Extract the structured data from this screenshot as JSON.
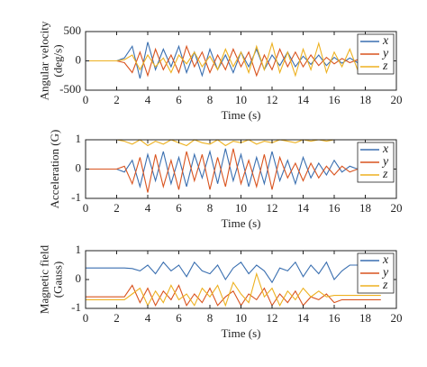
{
  "chart_data": [
    {
      "type": "line",
      "ylabel": [
        "Angular velocity",
        "(deg/s)"
      ],
      "xlabel": "Time (s)",
      "x": [
        0,
        0.5,
        1,
        1.5,
        2,
        2.5,
        3,
        3.5,
        4,
        4.5,
        5,
        5.5,
        6,
        6.5,
        7,
        7.5,
        8,
        8.5,
        9,
        9.5,
        10,
        10.5,
        11,
        11.5,
        12,
        12.5,
        13,
        13.5,
        14,
        14.5,
        15,
        15.5,
        16,
        16.5,
        17,
        17.5,
        18,
        18.5,
        19
      ],
      "xlim": [
        0,
        20
      ],
      "xticks": [
        0,
        2,
        4,
        6,
        8,
        10,
        12,
        14,
        16,
        18,
        20
      ],
      "ylim": [
        -500,
        500
      ],
      "yticks": [
        -500,
        0,
        500
      ],
      "legend": "upper right",
      "series": [
        {
          "name": "x",
          "color": "#3a6fb0",
          "values": [
            0,
            0,
            0,
            0,
            0,
            50,
            250,
            -300,
            320,
            -150,
            200,
            -100,
            250,
            -200,
            150,
            -250,
            200,
            -150,
            100,
            -200,
            150,
            -100,
            200,
            -150,
            100,
            -80,
            150,
            -100,
            80,
            -60,
            100,
            -80,
            60,
            -40,
            50,
            -30,
            20,
            10,
            0
          ]
        },
        {
          "name": "y",
          "color": "#d9531e",
          "values": [
            0,
            0,
            0,
            0,
            0,
            -30,
            -200,
            150,
            -250,
            200,
            -150,
            100,
            -200,
            250,
            -100,
            150,
            -200,
            100,
            -150,
            200,
            -100,
            150,
            -250,
            100,
            -150,
            200,
            -100,
            150,
            -100,
            100,
            -80,
            60,
            -50,
            40,
            -30,
            20,
            0,
            0,
            0
          ]
        },
        {
          "name": "z",
          "color": "#edb120",
          "values": [
            0,
            0,
            0,
            0,
            0,
            20,
            100,
            -150,
            100,
            -100,
            50,
            -200,
            100,
            -50,
            150,
            -100,
            80,
            -150,
            200,
            -100,
            150,
            -200,
            250,
            -150,
            300,
            -200,
            150,
            -250,
            200,
            -150,
            300,
            -200,
            150,
            -100,
            200,
            -150,
            100,
            -50,
            0
          ]
        }
      ]
    },
    {
      "type": "line",
      "ylabel": [
        "Acceleration (G)"
      ],
      "xlabel": "Time (s)",
      "x": [
        0,
        0.5,
        1,
        1.5,
        2,
        2.5,
        3,
        3.5,
        4,
        4.5,
        5,
        5.5,
        6,
        6.5,
        7,
        7.5,
        8,
        8.5,
        9,
        9.5,
        10,
        10.5,
        11,
        11.5,
        12,
        12.5,
        13,
        13.5,
        14,
        14.5,
        15,
        15.5,
        16,
        16.5,
        17,
        17.5,
        18,
        18.5,
        19
      ],
      "xlim": [
        0,
        20
      ],
      "xticks": [
        0,
        2,
        4,
        6,
        8,
        10,
        12,
        14,
        16,
        18,
        20
      ],
      "ylim": [
        -1,
        1
      ],
      "yticks": [
        -1,
        0,
        1
      ],
      "legend": "upper right",
      "series": [
        {
          "name": "x",
          "color": "#3a6fb0",
          "values": [
            0,
            0,
            0,
            0,
            0,
            -0.1,
            0.3,
            -0.6,
            0.5,
            -0.4,
            0.6,
            -0.5,
            0.4,
            -0.6,
            0.5,
            -0.3,
            0.6,
            -0.5,
            0.7,
            -0.4,
            0.5,
            -0.6,
            0.4,
            -0.5,
            0.6,
            -0.4,
            0.3,
            -0.5,
            0.4,
            -0.3,
            0.2,
            -0.2,
            0.3,
            -0.1,
            0.1,
            0,
            0,
            0,
            0
          ]
        },
        {
          "name": "y",
          "color": "#d9531e",
          "values": [
            0,
            0,
            0,
            0,
            0,
            0.1,
            -0.5,
            0.4,
            -0.8,
            0.5,
            -0.6,
            0.3,
            -0.7,
            0.6,
            -0.4,
            0.5,
            -0.7,
            0.4,
            -0.6,
            0.7,
            -0.5,
            0.3,
            -0.6,
            0.5,
            -0.7,
            0.4,
            -0.3,
            0.2,
            -0.4,
            0.2,
            -0.3,
            0.1,
            -0.2,
            0.1,
            -0.1,
            0,
            0,
            0,
            0
          ]
        },
        {
          "name": "z",
          "color": "#edb120",
          "values": [
            1,
            1,
            1,
            1,
            1,
            0.95,
            0.85,
            1,
            0.8,
            0.95,
            0.85,
            1,
            0.9,
            0.8,
            1,
            0.9,
            0.85,
            1,
            0.8,
            0.95,
            0.9,
            1,
            0.85,
            0.95,
            0.9,
            1,
            0.95,
            0.9,
            1,
            0.95,
            1,
            0.95,
            1,
            1,
            1,
            1,
            1,
            1,
            1
          ]
        }
      ]
    },
    {
      "type": "line",
      "ylabel": [
        "Magnetic field",
        "(Gauss)"
      ],
      "xlabel": "Time (s)",
      "x": [
        0,
        0.5,
        1,
        1.5,
        2,
        2.5,
        3,
        3.5,
        4,
        4.5,
        5,
        5.5,
        6,
        6.5,
        7,
        7.5,
        8,
        8.5,
        9,
        9.5,
        10,
        10.5,
        11,
        11.5,
        12,
        12.5,
        13,
        13.5,
        14,
        14.5,
        15,
        15.5,
        16,
        16.5,
        17,
        17.5,
        18,
        18.5,
        19
      ],
      "xlim": [
        0,
        20
      ],
      "xticks": [
        0,
        2,
        4,
        6,
        8,
        10,
        12,
        14,
        16,
        18,
        20
      ],
      "ylim": [
        -1,
        1
      ],
      "yticks": [
        -1,
        0,
        1
      ],
      "legend": "upper right",
      "series": [
        {
          "name": "x",
          "color": "#3a6fb0",
          "values": [
            0.4,
            0.4,
            0.4,
            0.4,
            0.4,
            0.4,
            0.38,
            0.3,
            0.5,
            0.2,
            0.6,
            0.3,
            0.5,
            0.1,
            0.6,
            0.3,
            0.2,
            0.5,
            0.0,
            0.4,
            0.6,
            0.2,
            0.5,
            0.3,
            -0.1,
            0.4,
            0.3,
            0.6,
            0.1,
            0.5,
            0.2,
            0.6,
            0.0,
            0.3,
            0.5,
            0.5,
            0.5,
            0.5,
            0.5
          ]
        },
        {
          "name": "y",
          "color": "#d9531e",
          "values": [
            -0.6,
            -0.6,
            -0.6,
            -0.6,
            -0.6,
            -0.6,
            -0.2,
            -0.8,
            -0.3,
            -0.9,
            -0.4,
            -0.7,
            -0.2,
            -0.9,
            -0.5,
            -0.8,
            -0.3,
            -0.9,
            -0.6,
            -0.4,
            -0.9,
            -0.5,
            -0.7,
            -0.3,
            -0.9,
            -0.5,
            -0.8,
            -0.4,
            -0.9,
            -0.6,
            -0.7,
            -0.5,
            -0.8,
            -0.7,
            -0.7,
            -0.7,
            -0.7,
            -0.7,
            -0.7
          ]
        },
        {
          "name": "z",
          "color": "#edb120",
          "values": [
            -0.7,
            -0.7,
            -0.7,
            -0.7,
            -0.7,
            -0.7,
            -0.5,
            -0.3,
            -0.9,
            -0.4,
            -0.8,
            -0.2,
            -0.7,
            -0.5,
            -0.9,
            -0.3,
            -0.6,
            -0.2,
            -0.9,
            -0.1,
            -0.5,
            -0.8,
            0.2,
            -0.6,
            -0.3,
            -0.9,
            -0.4,
            -0.7,
            -0.3,
            -0.6,
            -0.4,
            -0.6,
            -0.55,
            -0.55,
            -0.55,
            -0.55,
            -0.55,
            -0.55,
            -0.55
          ]
        }
      ]
    }
  ]
}
